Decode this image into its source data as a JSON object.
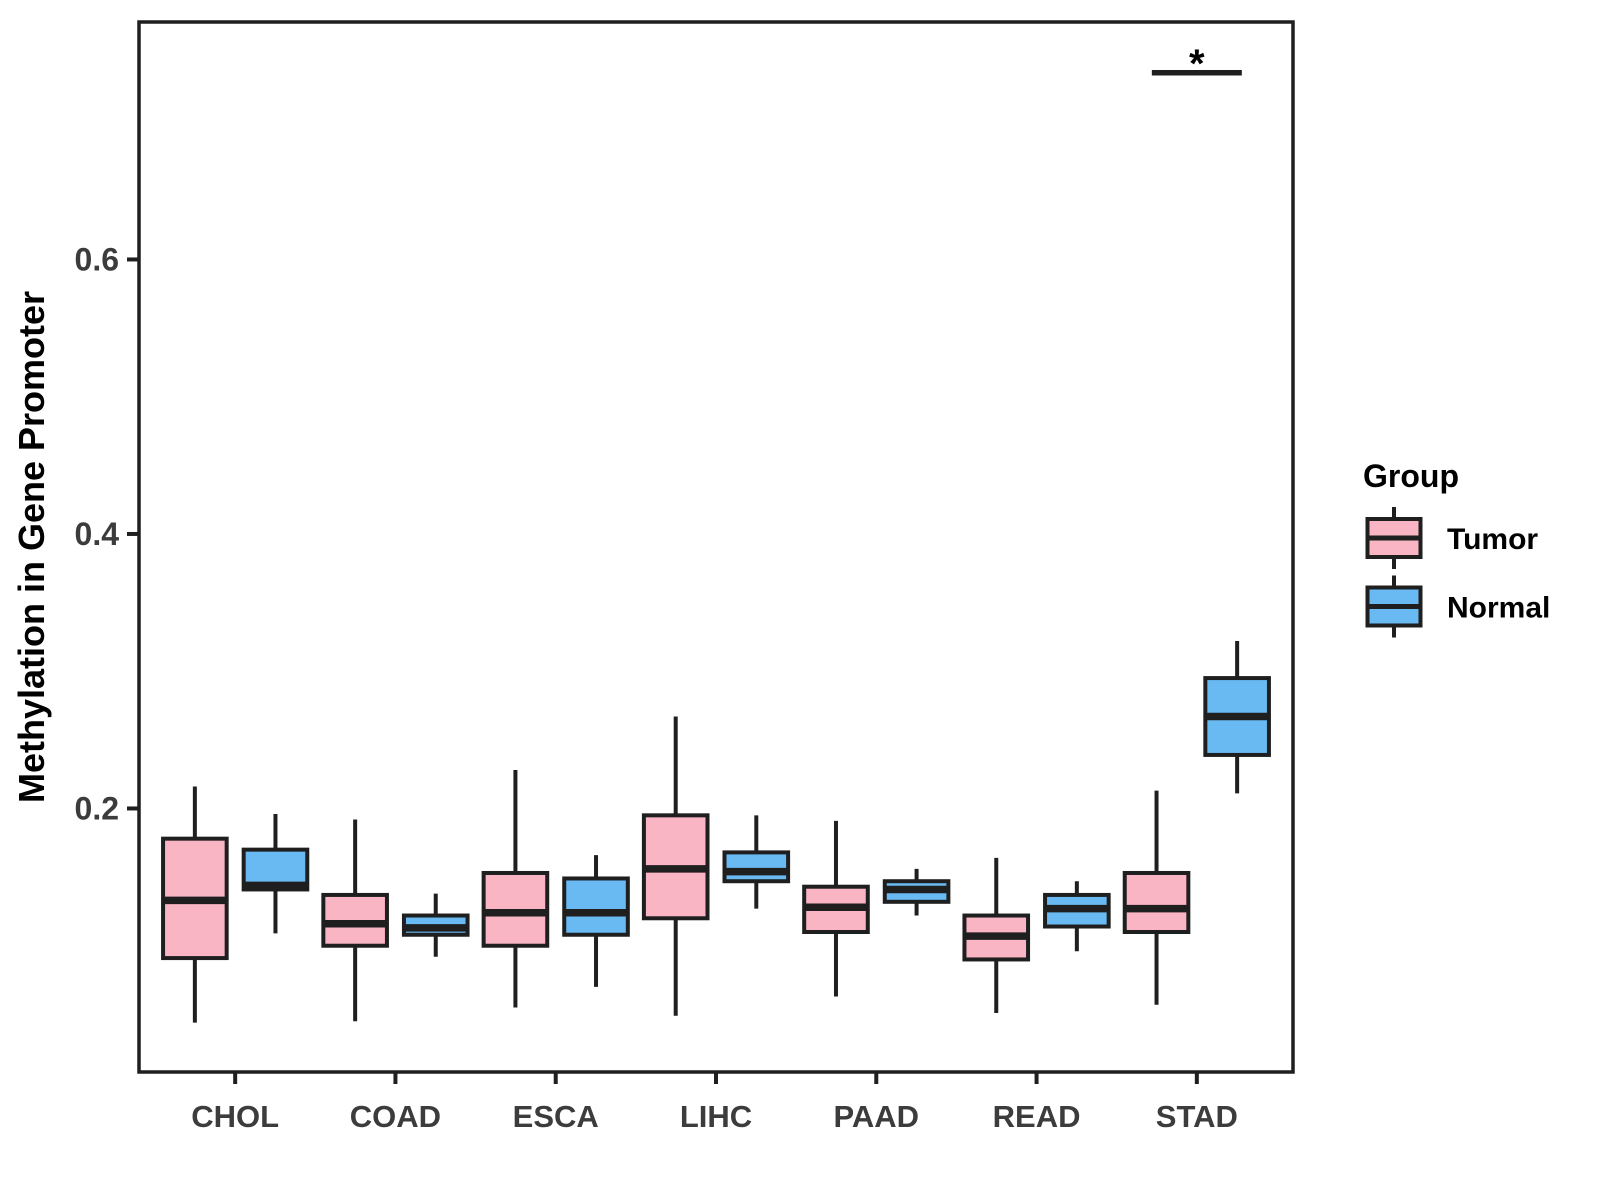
{
  "figure": {
    "background": "#ffffff"
  },
  "chart_data": {
    "type": "boxplot",
    "title": "",
    "xlabel": "",
    "ylabel": "Methylation in Gene Promoter",
    "categories": [
      "CHOL",
      "COAD",
      "ESCA",
      "LIHC",
      "PAAD",
      "READ",
      "STAD"
    ],
    "y_ticks": [
      0.2,
      0.4,
      0.6
    ],
    "y_tick_labels": [
      "0.2",
      "0.4",
      "0.6"
    ],
    "ylim": [
      0.008,
      0.773
    ],
    "grid": "off",
    "panel_border": "on",
    "legend": {
      "title": "Group",
      "position": "right",
      "entries": [
        {
          "label": "Tumor",
          "color": "#FAB5C4"
        },
        {
          "label": "Normal",
          "color": "#69BAF3"
        }
      ]
    },
    "colors": {
      "box_border": "#1F1F1F",
      "axis_line": "#1F1F1F",
      "tick_text": "#3C3C3C",
      "title_text": "#000000"
    },
    "series": [
      {
        "name": "Tumor",
        "color": "#FAB5C4",
        "boxes": [
          {
            "category": "CHOL",
            "whisker_low": 0.044,
            "q1": 0.091,
            "median": 0.133,
            "q3": 0.178,
            "whisker_high": 0.216
          },
          {
            "category": "COAD",
            "whisker_low": 0.045,
            "q1": 0.1,
            "median": 0.116,
            "q3": 0.137,
            "whisker_high": 0.192
          },
          {
            "category": "ESCA",
            "whisker_low": 0.055,
            "q1": 0.1,
            "median": 0.124,
            "q3": 0.153,
            "whisker_high": 0.228
          },
          {
            "category": "LIHC",
            "whisker_low": 0.049,
            "q1": 0.12,
            "median": 0.156,
            "q3": 0.195,
            "whisker_high": 0.267
          },
          {
            "category": "PAAD",
            "whisker_low": 0.063,
            "q1": 0.11,
            "median": 0.128,
            "q3": 0.143,
            "whisker_high": 0.191
          },
          {
            "category": "READ",
            "whisker_low": 0.051,
            "q1": 0.09,
            "median": 0.107,
            "q3": 0.122,
            "whisker_high": 0.164
          },
          {
            "category": "STAD",
            "whisker_low": 0.057,
            "q1": 0.11,
            "median": 0.127,
            "q3": 0.153,
            "whisker_high": 0.213
          }
        ]
      },
      {
        "name": "Normal",
        "color": "#69BAF3",
        "boxes": [
          {
            "category": "CHOL",
            "whisker_low": 0.109,
            "q1": 0.141,
            "median": 0.144,
            "q3": 0.17,
            "whisker_high": 0.196
          },
          {
            "category": "COAD",
            "whisker_low": 0.092,
            "q1": 0.108,
            "median": 0.113,
            "q3": 0.122,
            "whisker_high": 0.138
          },
          {
            "category": "ESCA",
            "whisker_low": 0.07,
            "q1": 0.108,
            "median": 0.124,
            "q3": 0.149,
            "whisker_high": 0.166
          },
          {
            "category": "LIHC",
            "whisker_low": 0.127,
            "q1": 0.147,
            "median": 0.154,
            "q3": 0.168,
            "whisker_high": 0.195
          },
          {
            "category": "PAAD",
            "whisker_low": 0.122,
            "q1": 0.132,
            "median": 0.141,
            "q3": 0.147,
            "whisker_high": 0.156
          },
          {
            "category": "READ",
            "whisker_low": 0.096,
            "q1": 0.114,
            "median": 0.127,
            "q3": 0.137,
            "whisker_high": 0.147
          },
          {
            "category": "STAD",
            "whisker_low": 0.211,
            "q1": 0.239,
            "median": 0.267,
            "q3": 0.295,
            "whisker_high": 0.322
          }
        ]
      }
    ],
    "annotations": [
      {
        "type": "significance",
        "category": "STAD",
        "label": "*",
        "bar_y": 0.736
      }
    ]
  }
}
